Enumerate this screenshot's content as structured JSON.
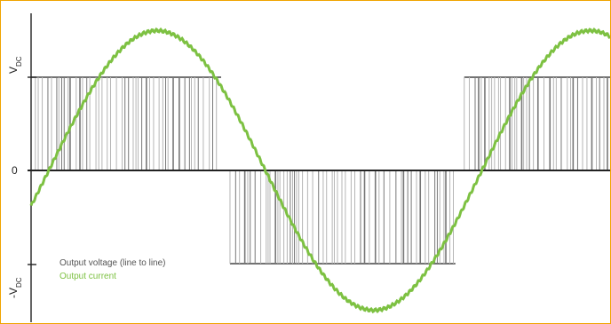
{
  "chart_data": {
    "type": "line",
    "title": "",
    "xlabel": "",
    "ylabel": "",
    "y_tick_labels": {
      "top": "V",
      "top_sub": "DC",
      "zero": "0",
      "bottom": "-V",
      "bottom_sub": "DC"
    },
    "ylim": [
      -1.5,
      1.1
    ],
    "xlim": [
      0,
      1.31
    ],
    "grid": false,
    "legend_placement": "bottom-left",
    "series": [
      {
        "name": "Output voltage (line to line)",
        "kind": "pwm",
        "color": "#8a8a8a",
        "segments": [
          {
            "x_start": 0.0,
            "x_end": 0.43,
            "level": 1
          },
          {
            "x_start": 0.45,
            "x_end": 0.96,
            "level": -1
          },
          {
            "x_start": 0.98,
            "x_end": 1.31,
            "level": 1
          }
        ]
      },
      {
        "name": "Output current",
        "kind": "sine",
        "color": "#7dc142",
        "amplitude": 1.5,
        "zero_crossings": [
          0.04,
          0.53,
          1.03
        ],
        "peaks": [
          {
            "x": 0.29,
            "y": 1.5
          },
          {
            "x": 0.78,
            "y": -1.5
          }
        ]
      }
    ]
  },
  "legend": {
    "voltage_label": "Output voltage (line to line)",
    "current_label": "Output current"
  },
  "colors": {
    "border": "#f0a400",
    "axis": "#222222",
    "voltage": "#8a8a8a",
    "current": "#7dc142"
  }
}
